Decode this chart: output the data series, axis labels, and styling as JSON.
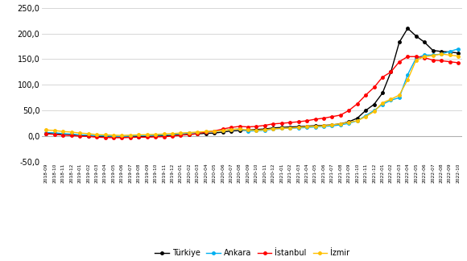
{
  "labels": [
    "2018-09",
    "2018-10",
    "2018-11",
    "2018-12",
    "2019-01",
    "2019-02",
    "2019-03",
    "2019-04",
    "2019-05",
    "2019-06",
    "2019-07",
    "2019-08",
    "2019-09",
    "2019-10",
    "2019-11",
    "2019-12",
    "2020-01",
    "2020-02",
    "2020-03",
    "2020-04",
    "2020-05",
    "2020-06",
    "2020-07",
    "2020-08",
    "2020-09",
    "2020-10",
    "2020-11",
    "2020-12",
    "2021-01",
    "2021-02",
    "2021-03",
    "2021-04",
    "2021-05",
    "2021-06",
    "2021-07",
    "2021-08",
    "2021-09",
    "2021-10",
    "2021-11",
    "2021-12",
    "2022-01",
    "2022-02",
    "2022-03",
    "2022-04",
    "2022-05",
    "2022-06",
    "2022-07",
    "2022-08",
    "2022-09",
    "2022-10"
  ],
  "turkiye": [
    5.5,
    4.5,
    3.0,
    2.5,
    1.0,
    0.5,
    -0.5,
    -1.0,
    -1.5,
    -2.0,
    -1.5,
    -1.0,
    -0.5,
    0.0,
    0.5,
    1.0,
    2.5,
    3.5,
    4.5,
    5.5,
    6.0,
    8.0,
    10.0,
    11.0,
    12.0,
    13.0,
    14.0,
    16.0,
    17.0,
    18.0,
    18.5,
    19.5,
    20.5,
    21.0,
    22.0,
    24.0,
    28.0,
    35.0,
    50.0,
    62.0,
    84.0,
    125.0,
    183.0,
    210.0,
    195.0,
    183.0,
    167.0,
    165.0,
    164.0,
    162.0
  ],
  "ankara": [
    7.0,
    6.5,
    5.0,
    4.0,
    2.5,
    2.0,
    1.0,
    0.5,
    0.0,
    -0.5,
    0.5,
    1.0,
    1.5,
    2.0,
    2.5,
    3.5,
    5.0,
    6.0,
    7.0,
    8.5,
    9.0,
    11.0,
    13.0,
    14.0,
    10.0,
    10.5,
    11.5,
    14.0,
    15.0,
    15.5,
    16.0,
    17.0,
    18.0,
    19.0,
    20.0,
    22.0,
    25.0,
    30.0,
    40.0,
    50.0,
    62.0,
    70.0,
    75.0,
    120.0,
    152.0,
    158.0,
    158.0,
    160.0,
    165.0,
    170.0
  ],
  "istanbul": [
    4.5,
    3.5,
    2.0,
    1.5,
    0.0,
    -0.5,
    -2.0,
    -2.5,
    -3.0,
    -3.0,
    -2.5,
    -2.0,
    -2.0,
    -1.5,
    -1.0,
    0.0,
    2.0,
    3.0,
    5.0,
    8.0,
    10.0,
    14.0,
    17.0,
    19.0,
    18.0,
    19.0,
    21.0,
    24.0,
    25.0,
    26.5,
    28.0,
    30.0,
    33.0,
    35.0,
    38.0,
    41.0,
    50.0,
    63.0,
    80.0,
    95.0,
    115.0,
    125.0,
    145.0,
    155.0,
    155.0,
    153.0,
    148.0,
    147.0,
    145.0,
    143.0
  ],
  "izmir": [
    12.0,
    11.0,
    9.0,
    8.0,
    6.0,
    5.0,
    3.0,
    2.5,
    2.0,
    1.5,
    2.0,
    2.5,
    3.0,
    3.5,
    4.0,
    5.0,
    6.0,
    7.0,
    8.0,
    9.0,
    9.5,
    11.0,
    13.0,
    14.0,
    12.0,
    11.5,
    12.5,
    14.5,
    15.0,
    16.0,
    17.0,
    18.5,
    19.5,
    20.0,
    22.0,
    24.0,
    27.0,
    30.0,
    38.0,
    48.0,
    65.0,
    72.0,
    80.0,
    110.0,
    148.0,
    155.0,
    157.0,
    160.0,
    158.0,
    156.0
  ],
  "colors": {
    "turkiye": "#000000",
    "ankara": "#00b0f0",
    "istanbul": "#ff0000",
    "izmir": "#ffc000"
  },
  "ylim": [
    -50,
    250
  ],
  "yticks": [
    250,
    200,
    150,
    100,
    50,
    0,
    -50
  ],
  "bg_color": "#ffffff",
  "grid_color": "#d0d0d0"
}
